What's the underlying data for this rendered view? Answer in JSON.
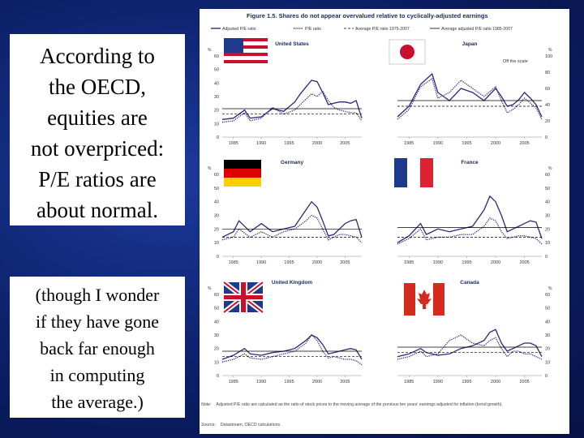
{
  "slide": {
    "main_lines": [
      "According to",
      "the OECD,",
      "equities are",
      "not overpriced:",
      "P/E ratios are",
      "about normal."
    ],
    "aside_lines": [
      "(though I wonder",
      "if they have gone",
      "back far enough",
      "in computing",
      "the average.)"
    ]
  },
  "figure": {
    "title": "Figure 1.5. Shares do not appear overvalued relative to cyclically-adjusted earnings",
    "legend": [
      "Adjusted P/E ratio",
      "P/E ratio",
      "Average P/E ratio 1975-2007",
      "Average adjusted P/E ratio 1985-2007"
    ],
    "note_label": "Note:",
    "note_text": "Adjusted P/E ratio are calculated as the ratio of stock prices to the moving average of the previous ten years' earnings adjusted for inflation (trend growth).",
    "source_label": "Source:",
    "source_text": "Datastream, OECD calculations.",
    "unit": "%",
    "japan_extra": "Off the scale",
    "colors": {
      "adjusted": "#2b2a7a",
      "pe": "#2b2a7a",
      "avg": "#000000"
    }
  },
  "chart_data": [
    {
      "type": "line",
      "title": "United States",
      "x_ticks": [
        "1985",
        "1990",
        "1995",
        "2000",
        "2005"
      ],
      "x_range": [
        1983,
        2008
      ],
      "ylim": [
        0,
        60
      ],
      "y_ticks": [
        "0",
        "10",
        "20",
        "30",
        "40",
        "50",
        "60"
      ],
      "series": [
        {
          "name": "Adjusted P/E ratio",
          "x": [
            1983,
            1985,
            1987,
            1988,
            1990,
            1992,
            1994,
            1996,
            1997,
            1998,
            1999,
            2000,
            2001,
            2002,
            2003,
            2004,
            2005,
            2006,
            2007,
            2008
          ],
          "values": [
            13,
            14,
            20,
            14,
            15,
            21,
            19,
            26,
            32,
            37,
            42,
            41,
            33,
            24,
            25,
            26,
            26,
            25,
            27,
            14
          ]
        },
        {
          "name": "P/E ratio",
          "x": [
            1983,
            1985,
            1987,
            1988,
            1990,
            1992,
            1994,
            1996,
            1997,
            1998,
            1999,
            2000,
            2001,
            2002,
            2003,
            2004,
            2005,
            2006,
            2007,
            2008
          ],
          "values": [
            11,
            12,
            18,
            12,
            14,
            22,
            17,
            20,
            24,
            28,
            32,
            30,
            34,
            27,
            22,
            20,
            19,
            18,
            18,
            12
          ]
        },
        {
          "name": "Average P/E ratio 1975-2007",
          "x": [
            1983,
            2008
          ],
          "values": [
            17,
            17
          ]
        },
        {
          "name": "Average adjusted P/E ratio 1985-2007",
          "x": [
            1983,
            2008
          ],
          "values": [
            21,
            21
          ]
        }
      ]
    },
    {
      "type": "line",
      "title": "Japan",
      "x_ticks": [
        "1985",
        "1990",
        "1995",
        "2000",
        "2005"
      ],
      "x_range": [
        1983,
        2008
      ],
      "ylim": [
        0,
        100
      ],
      "y_ticks": [
        "0",
        "20",
        "40",
        "60",
        "80",
        "100"
      ],
      "series": [
        {
          "name": "Adjusted P/E ratio",
          "x": [
            1983,
            1985,
            1987,
            1989,
            1990,
            1992,
            1994,
            1996,
            1998,
            2000,
            2001,
            2002,
            2003,
            2004,
            2005,
            2006,
            2007,
            2008
          ],
          "values": [
            25,
            38,
            65,
            78,
            55,
            45,
            60,
            55,
            45,
            60,
            50,
            38,
            40,
            46,
            55,
            48,
            40,
            25
          ]
        },
        {
          "name": "P/E ratio",
          "x": [
            1983,
            1985,
            1987,
            1989,
            1990,
            1992,
            1994,
            1996,
            1998,
            2000,
            2001,
            2002,
            2003,
            2004,
            2005,
            2006,
            2007,
            2008
          ],
          "values": [
            22,
            34,
            62,
            72,
            48,
            55,
            70,
            60,
            50,
            62,
            45,
            30,
            34,
            40,
            48,
            42,
            36,
            22
          ]
        },
        {
          "name": "Average P/E ratio 1975-2007",
          "x": [
            1983,
            2008
          ],
          "values": [
            38,
            38
          ]
        },
        {
          "name": "Average adjusted P/E ratio 1985-2007",
          "x": [
            1983,
            2008
          ],
          "values": [
            45,
            45
          ]
        }
      ]
    },
    {
      "type": "line",
      "title": "Germany",
      "x_ticks": [
        "1985",
        "1990",
        "1995",
        "2000",
        "2005"
      ],
      "x_range": [
        1983,
        2008
      ],
      "ylim": [
        0,
        60
      ],
      "y_ticks": [
        "0",
        "10",
        "20",
        "30",
        "40",
        "50",
        "60"
      ],
      "series": [
        {
          "name": "Adjusted P/E ratio",
          "x": [
            1983,
            1985,
            1986,
            1988,
            1990,
            1992,
            1994,
            1996,
            1998,
            1999,
            2000,
            2001,
            2002,
            2003,
            2004,
            2005,
            2006,
            2007,
            2008
          ],
          "values": [
            14,
            18,
            26,
            18,
            24,
            18,
            20,
            22,
            34,
            40,
            36,
            26,
            15,
            16,
            20,
            24,
            26,
            27,
            14
          ]
        },
        {
          "name": "P/E ratio",
          "x": [
            1983,
            1985,
            1986,
            1988,
            1990,
            1992,
            1994,
            1996,
            1998,
            1999,
            2000,
            2001,
            2002,
            2003,
            2004,
            2005,
            2006,
            2007,
            2008
          ],
          "values": [
            12,
            14,
            20,
            14,
            18,
            14,
            18,
            20,
            26,
            30,
            28,
            20,
            12,
            14,
            16,
            16,
            15,
            14,
            10
          ]
        },
        {
          "name": "Average P/E ratio 1975-2007",
          "x": [
            1983,
            2008
          ],
          "values": [
            14,
            14
          ]
        },
        {
          "name": "Average adjusted P/E ratio 1985-2007",
          "x": [
            1983,
            2008
          ],
          "values": [
            20,
            20
          ]
        }
      ]
    },
    {
      "type": "line",
      "title": "France",
      "x_ticks": [
        "1985",
        "1990",
        "1995",
        "2000",
        "2005"
      ],
      "x_range": [
        1983,
        2008
      ],
      "ylim": [
        0,
        60
      ],
      "y_ticks": [
        "0",
        "10",
        "20",
        "30",
        "40",
        "50",
        "60"
      ],
      "series": [
        {
          "name": "Adjusted P/E ratio",
          "x": [
            1983,
            1985,
            1987,
            1988,
            1990,
            1992,
            1994,
            1996,
            1998,
            1999,
            2000,
            2001,
            2002,
            2003,
            2004,
            2005,
            2006,
            2007,
            2008
          ],
          "values": [
            10,
            15,
            24,
            16,
            20,
            18,
            20,
            22,
            34,
            44,
            40,
            30,
            18,
            20,
            22,
            24,
            26,
            25,
            13
          ]
        },
        {
          "name": "P/E ratio",
          "x": [
            1983,
            1985,
            1987,
            1988,
            1990,
            1992,
            1994,
            1996,
            1998,
            1999,
            2000,
            2001,
            2002,
            2003,
            2004,
            2005,
            2006,
            2007,
            2008
          ],
          "values": [
            9,
            13,
            20,
            12,
            14,
            14,
            16,
            16,
            22,
            28,
            26,
            18,
            13,
            14,
            15,
            15,
            14,
            13,
            9
          ]
        },
        {
          "name": "Average P/E ratio 1975-2007",
          "x": [
            1983,
            2008
          ],
          "values": [
            14,
            14
          ]
        },
        {
          "name": "Average adjusted P/E ratio 1985-2007",
          "x": [
            1983,
            2008
          ],
          "values": [
            21,
            21
          ]
        }
      ]
    },
    {
      "type": "line",
      "title": "United Kingdom",
      "x_ticks": [
        "1985",
        "1990",
        "1995",
        "2000",
        "2005"
      ],
      "x_range": [
        1983,
        2008
      ],
      "ylim": [
        0,
        60
      ],
      "y_ticks": [
        "0",
        "10",
        "20",
        "30",
        "40",
        "50",
        "60"
      ],
      "series": [
        {
          "name": "Adjusted P/E ratio",
          "x": [
            1983,
            1985,
            1987,
            1988,
            1990,
            1992,
            1994,
            1996,
            1998,
            1999,
            2000,
            2001,
            2002,
            2003,
            2004,
            2005,
            2006,
            2007,
            2008
          ],
          "values": [
            12,
            15,
            20,
            16,
            15,
            17,
            18,
            20,
            26,
            30,
            28,
            23,
            16,
            17,
            18,
            19,
            20,
            19,
            12
          ]
        },
        {
          "name": "P/E ratio",
          "x": [
            1983,
            1985,
            1987,
            1988,
            1990,
            1992,
            1994,
            1996,
            1998,
            1999,
            2000,
            2001,
            2002,
            2003,
            2004,
            2005,
            2006,
            2007,
            2008
          ],
          "values": [
            10,
            12,
            16,
            13,
            12,
            14,
            16,
            18,
            24,
            30,
            26,
            18,
            13,
            14,
            13,
            12,
            12,
            11,
            8
          ]
        },
        {
          "name": "Average P/E ratio 1975-2007",
          "x": [
            1983,
            2008
          ],
          "values": [
            14,
            14
          ]
        },
        {
          "name": "Average adjusted P/E ratio 1985-2007",
          "x": [
            1983,
            2008
          ],
          "values": [
            18,
            18
          ]
        }
      ]
    },
    {
      "type": "line",
      "title": "Canada",
      "x_ticks": [
        "1985",
        "1990",
        "1995",
        "2000",
        "2005"
      ],
      "x_range": [
        1983,
        2008
      ],
      "ylim": [
        0,
        60
      ],
      "y_ticks": [
        "0",
        "10",
        "20",
        "30",
        "40",
        "50",
        "60"
      ],
      "series": [
        {
          "name": "Adjusted P/E ratio",
          "x": [
            1983,
            1985,
            1987,
            1988,
            1990,
            1992,
            1994,
            1996,
            1998,
            1999,
            2000,
            2001,
            2002,
            2003,
            2004,
            2005,
            2006,
            2007,
            2008
          ],
          "values": [
            14,
            16,
            20,
            17,
            15,
            16,
            20,
            22,
            26,
            32,
            34,
            24,
            18,
            20,
            22,
            24,
            24,
            22,
            14
          ]
        },
        {
          "name": "P/E ratio",
          "x": [
            1983,
            1985,
            1987,
            1988,
            1990,
            1992,
            1994,
            1996,
            1998,
            1999,
            2000,
            2001,
            2002,
            2003,
            2004,
            2005,
            2006,
            2007,
            2008
          ],
          "values": [
            12,
            14,
            18,
            14,
            16,
            26,
            30,
            24,
            22,
            26,
            28,
            20,
            14,
            18,
            18,
            16,
            16,
            14,
            12
          ]
        },
        {
          "name": "Average P/E ratio 1975-2007",
          "x": [
            1983,
            2008
          ],
          "values": [
            17,
            17
          ]
        },
        {
          "name": "Average adjusted P/E ratio 1985-2007",
          "x": [
            1983,
            2008
          ],
          "values": [
            21,
            21
          ]
        }
      ]
    }
  ]
}
